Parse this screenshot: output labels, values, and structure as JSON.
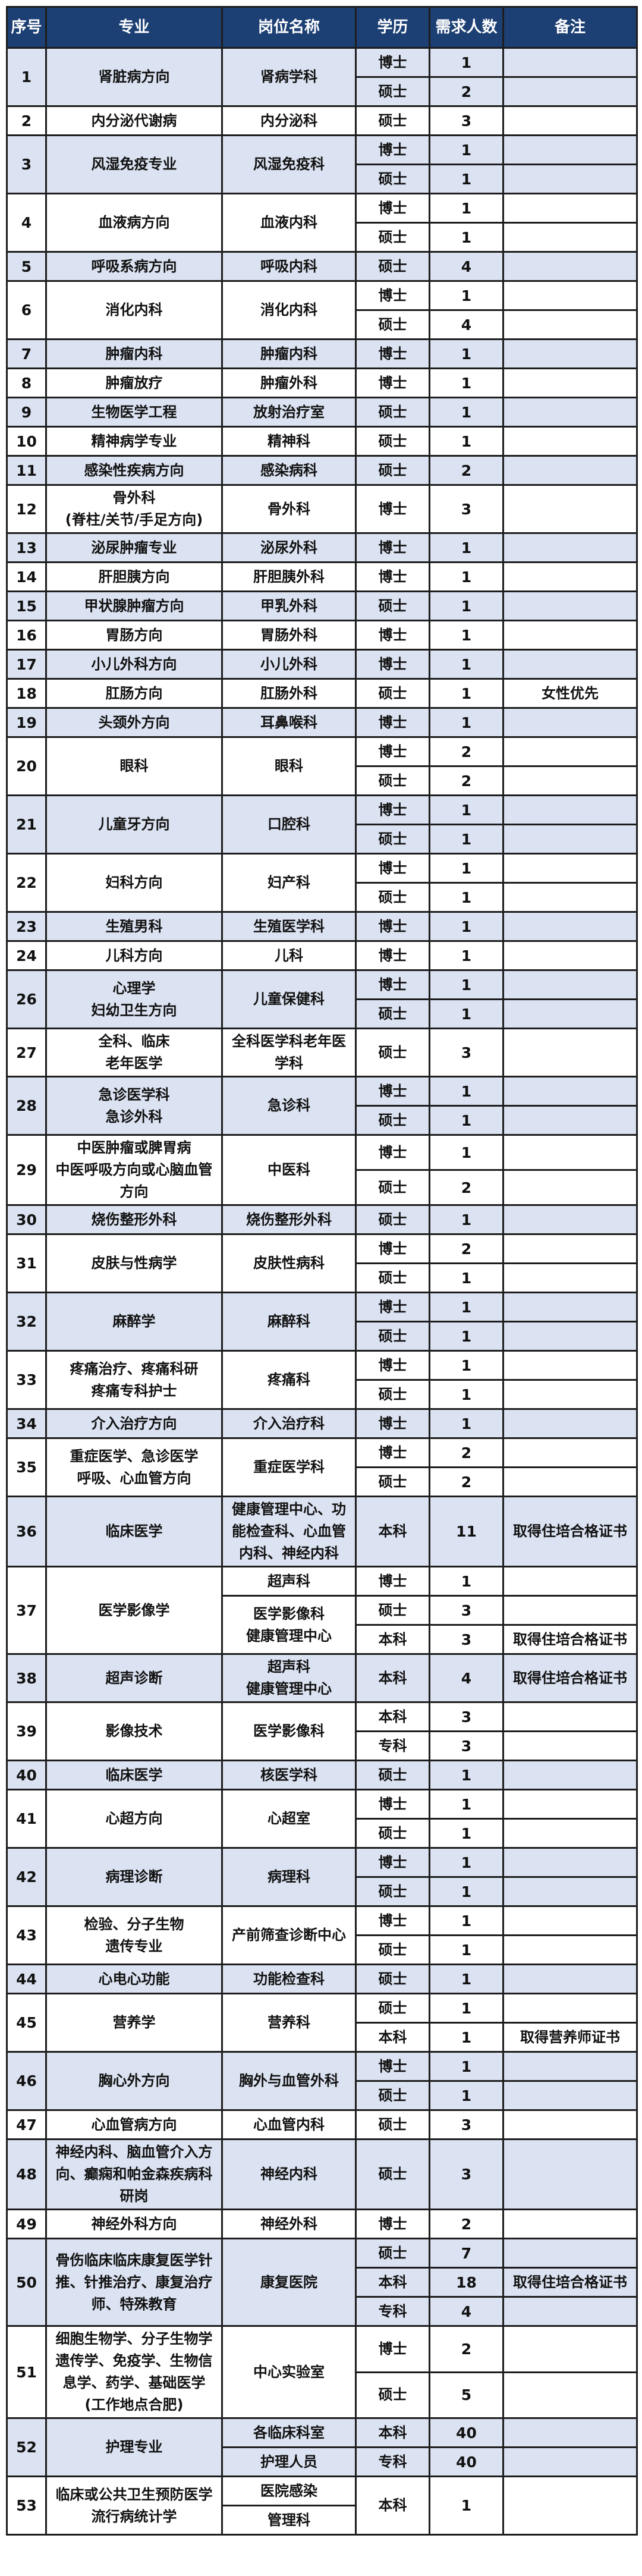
{
  "colors": {
    "header_bg": "#1c3f74",
    "alt_row_bg": "#dbe2f1",
    "border": "#1d1d1d"
  },
  "headers": {
    "no": "序号",
    "major": "专业",
    "position": "岗位名称",
    "degree": "学历",
    "count": "需求人数",
    "note": "备注"
  },
  "groups": [
    {
      "no": "1",
      "major": "肾脏病方向",
      "positions": [
        {
          "name": "肾病学科",
          "entries": [
            {
              "degree": "博士",
              "count": "1",
              "note": ""
            },
            {
              "degree": "硕士",
              "count": "2",
              "note": ""
            }
          ]
        }
      ]
    },
    {
      "no": "2",
      "major": "内分泌代谢病",
      "positions": [
        {
          "name": "内分泌科",
          "entries": [
            {
              "degree": "硕士",
              "count": "3",
              "note": ""
            }
          ]
        }
      ]
    },
    {
      "no": "3",
      "major": "风湿免疫专业",
      "positions": [
        {
          "name": "风湿免疫科",
          "entries": [
            {
              "degree": "博士",
              "count": "1",
              "note": ""
            },
            {
              "degree": "硕士",
              "count": "1",
              "note": ""
            }
          ]
        }
      ]
    },
    {
      "no": "4",
      "major": "血液病方向",
      "positions": [
        {
          "name": "血液内科",
          "entries": [
            {
              "degree": "博士",
              "count": "1",
              "note": ""
            },
            {
              "degree": "硕士",
              "count": "1",
              "note": ""
            }
          ]
        }
      ]
    },
    {
      "no": "5",
      "major": "呼吸系病方向",
      "positions": [
        {
          "name": "呼吸内科",
          "entries": [
            {
              "degree": "硕士",
              "count": "4",
              "note": ""
            }
          ]
        }
      ]
    },
    {
      "no": "6",
      "major": "消化内科",
      "positions": [
        {
          "name": "消化内科",
          "entries": [
            {
              "degree": "博士",
              "count": "1",
              "note": ""
            },
            {
              "degree": "硕士",
              "count": "4",
              "note": ""
            }
          ]
        }
      ]
    },
    {
      "no": "7",
      "major": "肿瘤内科",
      "positions": [
        {
          "name": "肿瘤内科",
          "entries": [
            {
              "degree": "博士",
              "count": "1",
              "note": ""
            }
          ]
        }
      ]
    },
    {
      "no": "8",
      "major": "肿瘤放疗",
      "positions": [
        {
          "name": "肿瘤外科",
          "entries": [
            {
              "degree": "博士",
              "count": "1",
              "note": ""
            }
          ]
        }
      ]
    },
    {
      "no": "9",
      "major": "生物医学工程",
      "positions": [
        {
          "name": "放射治疗室",
          "entries": [
            {
              "degree": "硕士",
              "count": "1",
              "note": ""
            }
          ]
        }
      ]
    },
    {
      "no": "10",
      "major": "精神病学专业",
      "positions": [
        {
          "name": "精神科",
          "entries": [
            {
              "degree": "硕士",
              "count": "1",
              "note": ""
            }
          ]
        }
      ]
    },
    {
      "no": "11",
      "major": "感染性疾病方向",
      "positions": [
        {
          "name": "感染病科",
          "entries": [
            {
              "degree": "硕士",
              "count": "2",
              "note": ""
            }
          ]
        }
      ]
    },
    {
      "no": "12",
      "major": "骨外科\n(脊柱/关节/手足方向)",
      "positions": [
        {
          "name": "骨外科",
          "entries": [
            {
              "degree": "博士",
              "count": "3",
              "note": ""
            }
          ]
        }
      ]
    },
    {
      "no": "13",
      "major": "泌尿肿瘤专业",
      "positions": [
        {
          "name": "泌尿外科",
          "entries": [
            {
              "degree": "博士",
              "count": "1",
              "note": ""
            }
          ]
        }
      ]
    },
    {
      "no": "14",
      "major": "肝胆胰方向",
      "positions": [
        {
          "name": "肝胆胰外科",
          "entries": [
            {
              "degree": "博士",
              "count": "1",
              "note": ""
            }
          ]
        }
      ]
    },
    {
      "no": "15",
      "major": "甲状腺肿瘤方向",
      "positions": [
        {
          "name": "甲乳外科",
          "entries": [
            {
              "degree": "硕士",
              "count": "1",
              "note": ""
            }
          ]
        }
      ]
    },
    {
      "no": "16",
      "major": "胃肠方向",
      "positions": [
        {
          "name": "胃肠外科",
          "entries": [
            {
              "degree": "博士",
              "count": "1",
              "note": ""
            }
          ]
        }
      ]
    },
    {
      "no": "17",
      "major": "小儿外科方向",
      "positions": [
        {
          "name": "小儿外科",
          "entries": [
            {
              "degree": "博士",
              "count": "1",
              "note": ""
            }
          ]
        }
      ]
    },
    {
      "no": "18",
      "major": "肛肠方向",
      "positions": [
        {
          "name": "肛肠外科",
          "entries": [
            {
              "degree": "硕士",
              "count": "1",
              "note": "女性优先"
            }
          ]
        }
      ]
    },
    {
      "no": "19",
      "major": "头颈外方向",
      "positions": [
        {
          "name": "耳鼻喉科",
          "entries": [
            {
              "degree": "博士",
              "count": "1",
              "note": ""
            }
          ]
        }
      ]
    },
    {
      "no": "20",
      "major": "眼科",
      "positions": [
        {
          "name": "眼科",
          "entries": [
            {
              "degree": "博士",
              "count": "2",
              "note": ""
            },
            {
              "degree": "硕士",
              "count": "2",
              "note": ""
            }
          ]
        }
      ]
    },
    {
      "no": "21",
      "major": "儿童牙方向",
      "positions": [
        {
          "name": "口腔科",
          "entries": [
            {
              "degree": "博士",
              "count": "1",
              "note": ""
            },
            {
              "degree": "硕士",
              "count": "1",
              "note": ""
            }
          ]
        }
      ]
    },
    {
      "no": "22",
      "major": "妇科方向",
      "positions": [
        {
          "name": "妇产科",
          "entries": [
            {
              "degree": "博士",
              "count": "1",
              "note": ""
            },
            {
              "degree": "硕士",
              "count": "1",
              "note": ""
            }
          ]
        }
      ]
    },
    {
      "no": "23",
      "major": "生殖男科",
      "positions": [
        {
          "name": "生殖医学科",
          "entries": [
            {
              "degree": "博士",
              "count": "1",
              "note": ""
            }
          ]
        }
      ]
    },
    {
      "no": "24",
      "major": "儿科方向",
      "positions": [
        {
          "name": "儿科",
          "entries": [
            {
              "degree": "博士",
              "count": "1",
              "note": ""
            }
          ]
        }
      ]
    },
    {
      "no": "26",
      "major": "心理学\n妇幼卫生方向",
      "positions": [
        {
          "name": "儿童保健科",
          "entries": [
            {
              "degree": "博士",
              "count": "1",
              "note": ""
            },
            {
              "degree": "硕士",
              "count": "1",
              "note": ""
            }
          ]
        }
      ]
    },
    {
      "no": "27",
      "major": "全科、临床\n老年医学",
      "positions": [
        {
          "name": "全科医学科老年医\n学科",
          "entries": [
            {
              "degree": "硕士",
              "count": "3",
              "note": ""
            }
          ]
        }
      ]
    },
    {
      "no": "28",
      "major": "急诊医学科\n急诊外科",
      "positions": [
        {
          "name": "急诊科",
          "entries": [
            {
              "degree": "博士",
              "count": "1",
              "note": ""
            },
            {
              "degree": "硕士",
              "count": "1",
              "note": ""
            }
          ]
        }
      ]
    },
    {
      "no": "29",
      "major": "中医肿瘤或脾胃病\n中医呼吸方向或心脑血管\n方向",
      "positions": [
        {
          "name": "中医科",
          "entries": [
            {
              "degree": "博士",
              "count": "1",
              "note": ""
            },
            {
              "degree": "硕士",
              "count": "2",
              "note": ""
            }
          ]
        }
      ]
    },
    {
      "no": "30",
      "major": "烧伤整形外科",
      "positions": [
        {
          "name": "烧伤整形外科",
          "entries": [
            {
              "degree": "硕士",
              "count": "1",
              "note": ""
            }
          ]
        }
      ]
    },
    {
      "no": "31",
      "major": "皮肤与性病学",
      "positions": [
        {
          "name": "皮肤性病科",
          "entries": [
            {
              "degree": "博士",
              "count": "2",
              "note": ""
            },
            {
              "degree": "硕士",
              "count": "1",
              "note": ""
            }
          ]
        }
      ]
    },
    {
      "no": "32",
      "major": "麻醉学",
      "positions": [
        {
          "name": "麻醉科",
          "entries": [
            {
              "degree": "博士",
              "count": "1",
              "note": ""
            },
            {
              "degree": "硕士",
              "count": "1",
              "note": ""
            }
          ]
        }
      ]
    },
    {
      "no": "33",
      "major": "疼痛治疗、疼痛科研\n疼痛专科护士",
      "positions": [
        {
          "name": "疼痛科",
          "entries": [
            {
              "degree": "博士",
              "count": "1",
              "note": ""
            },
            {
              "degree": "硕士",
              "count": "1",
              "note": ""
            }
          ]
        }
      ]
    },
    {
      "no": "34",
      "major": "介入治疗方向",
      "positions": [
        {
          "name": "介入治疗科",
          "entries": [
            {
              "degree": "博士",
              "count": "1",
              "note": ""
            }
          ]
        }
      ]
    },
    {
      "no": "35",
      "major": "重症医学、急诊医学\n呼吸、心血管方向",
      "positions": [
        {
          "name": "重症医学科",
          "entries": [
            {
              "degree": "博士",
              "count": "2",
              "note": ""
            },
            {
              "degree": "硕士",
              "count": "2",
              "note": ""
            }
          ]
        }
      ]
    },
    {
      "no": "36",
      "major": "临床医学",
      "positions": [
        {
          "name": "健康管理中心、功\n能检查科、心血管\n内科、神经内科",
          "entries": [
            {
              "degree": "本科",
              "count": "11",
              "note": "取得住培合格证书"
            }
          ]
        }
      ]
    },
    {
      "no": "37",
      "major": "医学影像学",
      "positions": [
        {
          "name": "超声科",
          "entries": [
            {
              "degree": "博士",
              "count": "1",
              "note": ""
            }
          ]
        },
        {
          "name": "医学影像科\n健康管理中心",
          "entries": [
            {
              "degree": "硕士",
              "count": "3",
              "note": ""
            },
            {
              "degree": "本科",
              "count": "3",
              "note": "取得住培合格证书"
            }
          ]
        }
      ]
    },
    {
      "no": "38",
      "major": "超声诊断",
      "positions": [
        {
          "name": "超声科\n健康管理中心",
          "entries": [
            {
              "degree": "本科",
              "count": "4",
              "note": "取得住培合格证书"
            }
          ]
        }
      ]
    },
    {
      "no": "39",
      "major": "影像技术",
      "positions": [
        {
          "name": "医学影像科",
          "entries": [
            {
              "degree": "本科",
              "count": "3",
              "note": ""
            },
            {
              "degree": "专科",
              "count": "3",
              "note": ""
            }
          ]
        }
      ]
    },
    {
      "no": "40",
      "major": "临床医学",
      "positions": [
        {
          "name": "核医学科",
          "entries": [
            {
              "degree": "硕士",
              "count": "1",
              "note": ""
            }
          ]
        }
      ]
    },
    {
      "no": "41",
      "major": "心超方向",
      "positions": [
        {
          "name": "心超室",
          "entries": [
            {
              "degree": "博士",
              "count": "1",
              "note": ""
            },
            {
              "degree": "硕士",
              "count": "1",
              "note": ""
            }
          ]
        }
      ]
    },
    {
      "no": "42",
      "major": "病理诊断",
      "positions": [
        {
          "name": "病理科",
          "entries": [
            {
              "degree": "博士",
              "count": "1",
              "note": ""
            },
            {
              "degree": "硕士",
              "count": "1",
              "note": ""
            }
          ]
        }
      ]
    },
    {
      "no": "43",
      "major": "检验、分子生物\n遗传专业",
      "positions": [
        {
          "name": "产前筛查诊断中心",
          "entries": [
            {
              "degree": "博士",
              "count": "1",
              "note": ""
            },
            {
              "degree": "硕士",
              "count": "1",
              "note": ""
            }
          ]
        }
      ]
    },
    {
      "no": "44",
      "major": "心电心功能",
      "positions": [
        {
          "name": "功能检查科",
          "entries": [
            {
              "degree": "硕士",
              "count": "1",
              "note": ""
            }
          ]
        }
      ]
    },
    {
      "no": "45",
      "major": "营养学",
      "positions": [
        {
          "name": "营养科",
          "entries": [
            {
              "degree": "硕士",
              "count": "1",
              "note": ""
            },
            {
              "degree": "本科",
              "count": "1",
              "note": "取得营养师证书"
            }
          ]
        }
      ]
    },
    {
      "no": "46",
      "major": "胸心外方向",
      "positions": [
        {
          "name": "胸外与血管外科",
          "entries": [
            {
              "degree": "博士",
              "count": "1",
              "note": ""
            },
            {
              "degree": "硕士",
              "count": "1",
              "note": ""
            }
          ]
        }
      ]
    },
    {
      "no": "47",
      "major": "心血管病方向",
      "positions": [
        {
          "name": "心血管内科",
          "entries": [
            {
              "degree": "硕士",
              "count": "3",
              "note": ""
            }
          ]
        }
      ]
    },
    {
      "no": "48",
      "major": "神经内科、脑血管介入方\n向、癫痫和帕金森疾病科\n研岗",
      "positions": [
        {
          "name": "神经内科",
          "entries": [
            {
              "degree": "硕士",
              "count": "3",
              "note": ""
            }
          ]
        }
      ]
    },
    {
      "no": "49",
      "major": "神经外科方向",
      "positions": [
        {
          "name": "神经外科",
          "entries": [
            {
              "degree": "博士",
              "count": "2",
              "note": ""
            }
          ]
        }
      ]
    },
    {
      "no": "50",
      "major": "骨伤临床临床康复医学针\n推、针推治疗、康复治疗\n师、特殊教育",
      "positions": [
        {
          "name": "康复医院",
          "entries": [
            {
              "degree": "硕士",
              "count": "7",
              "note": ""
            },
            {
              "degree": "本科",
              "count": "18",
              "note": "取得住培合格证书"
            },
            {
              "degree": "专科",
              "count": "4",
              "note": ""
            }
          ]
        }
      ]
    },
    {
      "no": "51",
      "major": "细胞生物学、分子生物学\n遗传学、免疫学、生物信\n息学、药学、基础医学\n(工作地点合肥)",
      "positions": [
        {
          "name": "中心实验室",
          "entries": [
            {
              "degree": "博士",
              "count": "2",
              "note": ""
            },
            {
              "degree": "硕士",
              "count": "5",
              "note": ""
            }
          ]
        }
      ]
    },
    {
      "no": "52",
      "major": "护理专业",
      "positions": [
        {
          "name": "各临床科室",
          "entries": [
            {
              "degree": "本科",
              "count": "40",
              "note": ""
            }
          ]
        },
        {
          "name": "护理人员",
          "entries": [
            {
              "degree": "专科",
              "count": "40",
              "note": ""
            }
          ]
        }
      ]
    },
    {
      "no": "53",
      "major": "临床或公共卫生预防医学\n流行病统计学",
      "positions": [
        {
          "name": "医院感染",
          "entries": []
        },
        {
          "name": "管理科",
          "entries": []
        }
      ],
      "shared_entry": {
        "degree": "本科",
        "count": "1",
        "note": ""
      }
    }
  ]
}
